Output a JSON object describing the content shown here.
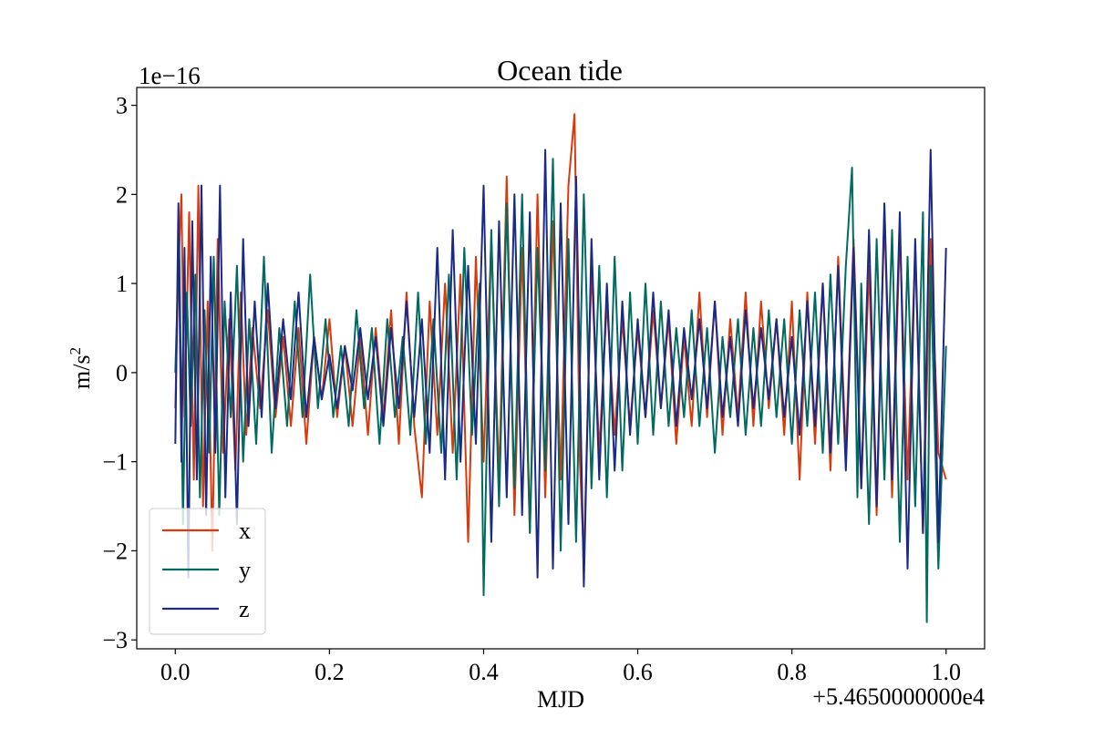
{
  "chart_data": {
    "type": "line",
    "title": "Ocean tide",
    "xlabel": "MJD",
    "ylabel_base": "m/s",
    "ylabel_exp": "2",
    "x_offset_text": "+5.4650000000e4",
    "y_scale_text": "1e−16",
    "xlim": [
      -0.05,
      1.05
    ],
    "ylim": [
      -3.1,
      3.2
    ],
    "x_ticks": [
      0.0,
      0.2,
      0.4,
      0.6,
      0.8,
      1.0
    ],
    "x_tick_labels": [
      "0.0",
      "0.2",
      "0.4",
      "0.6",
      "0.8",
      "1.0"
    ],
    "y_ticks": [
      -3,
      -2,
      -1,
      0,
      1,
      2,
      3
    ],
    "y_tick_labels": [
      "−3",
      "−2",
      "−1",
      "0",
      "1",
      "2",
      "3"
    ],
    "legend_position": "lower-left",
    "grid": false,
    "series": [
      {
        "name": "x",
        "color": "#d93a0c",
        "x": [
          0.0,
          0.004,
          0.008,
          0.012,
          0.018,
          0.024,
          0.03,
          0.036,
          0.042,
          0.048,
          0.055,
          0.062,
          0.07,
          0.078,
          0.085,
          0.092,
          0.1,
          0.11,
          0.12,
          0.13,
          0.14,
          0.15,
          0.16,
          0.17,
          0.18,
          0.19,
          0.2,
          0.21,
          0.22,
          0.23,
          0.24,
          0.25,
          0.26,
          0.27,
          0.28,
          0.29,
          0.3,
          0.31,
          0.32,
          0.33,
          0.34,
          0.35,
          0.36,
          0.37,
          0.38,
          0.39,
          0.4,
          0.41,
          0.42,
          0.43,
          0.44,
          0.45,
          0.46,
          0.47,
          0.48,
          0.49,
          0.5,
          0.51,
          0.518,
          0.525,
          0.53,
          0.54,
          0.55,
          0.56,
          0.57,
          0.58,
          0.59,
          0.6,
          0.61,
          0.62,
          0.63,
          0.64,
          0.65,
          0.66,
          0.67,
          0.68,
          0.69,
          0.7,
          0.71,
          0.72,
          0.73,
          0.74,
          0.75,
          0.76,
          0.77,
          0.78,
          0.79,
          0.8,
          0.81,
          0.82,
          0.83,
          0.84,
          0.85,
          0.86,
          0.87,
          0.88,
          0.89,
          0.9,
          0.91,
          0.92,
          0.93,
          0.94,
          0.95,
          0.96,
          0.97,
          0.98,
          0.99,
          1.0
        ],
        "y": [
          -0.4,
          1.2,
          2.0,
          -0.5,
          1.8,
          -1.2,
          2.1,
          -1.5,
          0.8,
          -2.0,
          1.5,
          -0.9,
          0.6,
          -1.1,
          0.9,
          -0.7,
          0.5,
          -0.4,
          0.7,
          -0.5,
          0.4,
          -0.6,
          0.5,
          -0.8,
          0.4,
          -0.3,
          0.6,
          -0.5,
          0.3,
          -0.6,
          0.4,
          -0.7,
          0.5,
          -0.5,
          0.7,
          -0.8,
          0.9,
          -0.6,
          -1.4,
          0.8,
          -0.7,
          1.0,
          -0.9,
          1.1,
          -1.9,
          1.3,
          -1.0,
          1.5,
          -1.2,
          2.2,
          -1.6,
          1.4,
          -1.8,
          2.0,
          -1.4,
          1.7,
          -1.2,
          2.1,
          2.9,
          -1.0,
          -2.1,
          1.2,
          -0.9,
          0.8,
          -0.7,
          0.6,
          -0.6,
          0.5,
          -0.5,
          0.7,
          -0.4,
          0.6,
          -0.8,
          0.4,
          -0.6,
          0.9,
          -0.5,
          0.8,
          -0.7,
          0.6,
          -0.5,
          0.9,
          -0.6,
          0.8,
          -0.4,
          0.6,
          -0.7,
          0.8,
          -1.2,
          0.9,
          -0.8,
          1.0,
          -1.1,
          1.3,
          -0.9,
          1.5,
          -1.3,
          1.2,
          -1.6,
          1.8,
          -1.4,
          1.6,
          -1.2,
          1.4,
          -1.8,
          1.5,
          -0.9,
          -1.2
        ]
      },
      {
        "name": "y",
        "color": "#006b5e",
        "x": [
          0.0,
          0.005,
          0.01,
          0.015,
          0.02,
          0.026,
          0.032,
          0.038,
          0.044,
          0.05,
          0.057,
          0.064,
          0.072,
          0.08,
          0.088,
          0.096,
          0.105,
          0.115,
          0.125,
          0.135,
          0.145,
          0.155,
          0.165,
          0.175,
          0.185,
          0.195,
          0.205,
          0.215,
          0.225,
          0.235,
          0.245,
          0.255,
          0.265,
          0.275,
          0.285,
          0.295,
          0.305,
          0.315,
          0.325,
          0.335,
          0.345,
          0.355,
          0.365,
          0.375,
          0.385,
          0.395,
          0.4,
          0.41,
          0.42,
          0.43,
          0.44,
          0.45,
          0.46,
          0.47,
          0.48,
          0.49,
          0.5,
          0.51,
          0.52,
          0.53,
          0.54,
          0.55,
          0.56,
          0.57,
          0.58,
          0.59,
          0.6,
          0.61,
          0.62,
          0.63,
          0.64,
          0.65,
          0.66,
          0.67,
          0.68,
          0.69,
          0.7,
          0.71,
          0.72,
          0.73,
          0.74,
          0.75,
          0.76,
          0.77,
          0.78,
          0.79,
          0.8,
          0.81,
          0.82,
          0.83,
          0.84,
          0.85,
          0.86,
          0.87,
          0.878,
          0.885,
          0.89,
          0.9,
          0.91,
          0.92,
          0.93,
          0.94,
          0.95,
          0.96,
          0.97,
          0.975,
          0.98,
          0.99,
          1.0
        ],
        "y": [
          0.0,
          1.5,
          -1.7,
          0.9,
          -0.6,
          1.1,
          -1.4,
          0.7,
          -0.9,
          1.3,
          -1.6,
          0.8,
          -0.5,
          1.2,
          -1.0,
          0.6,
          -0.8,
          1.3,
          -0.9,
          0.5,
          -0.6,
          0.8,
          -0.5,
          1.1,
          -0.4,
          0.6,
          -0.5,
          0.3,
          -0.6,
          0.7,
          -0.4,
          0.5,
          -0.8,
          0.6,
          -0.5,
          0.4,
          -0.7,
          0.9,
          -0.8,
          0.6,
          -0.9,
          1.1,
          -1.2,
          1.4,
          -0.7,
          1.0,
          -2.5,
          1.6,
          -1.5,
          1.9,
          -1.3,
          2.0,
          -1.8,
          1.4,
          -1.1,
          2.4,
          -2.0,
          1.5,
          -1.9,
          2.0,
          -1.3,
          1.2,
          -1.4,
          1.3,
          -1.1,
          0.9,
          -0.8,
          1.0,
          -0.7,
          0.8,
          -0.6,
          0.5,
          -0.5,
          0.7,
          -0.6,
          0.5,
          -0.9,
          0.4,
          -0.5,
          0.6,
          -0.7,
          0.5,
          -0.6,
          0.7,
          -0.5,
          0.6,
          -0.8,
          0.7,
          -0.6,
          0.9,
          -0.9,
          1.1,
          -0.8,
          1.2,
          2.3,
          -1.4,
          1.0,
          -1.7,
          1.5,
          -1.2,
          1.6,
          -1.9,
          1.3,
          -1.5,
          1.8,
          -2.8,
          1.2,
          -2.2,
          0.3
        ]
      },
      {
        "name": "z",
        "color": "#1b2a86",
        "x": [
          0.0,
          0.004,
          0.008,
          0.012,
          0.017,
          0.022,
          0.028,
          0.034,
          0.04,
          0.046,
          0.052,
          0.058,
          0.065,
          0.072,
          0.08,
          0.088,
          0.095,
          0.103,
          0.112,
          0.12,
          0.13,
          0.14,
          0.15,
          0.16,
          0.17,
          0.18,
          0.19,
          0.2,
          0.21,
          0.22,
          0.23,
          0.24,
          0.25,
          0.26,
          0.27,
          0.28,
          0.29,
          0.3,
          0.31,
          0.32,
          0.33,
          0.34,
          0.35,
          0.36,
          0.37,
          0.38,
          0.39,
          0.4,
          0.41,
          0.42,
          0.43,
          0.44,
          0.45,
          0.46,
          0.47,
          0.48,
          0.49,
          0.5,
          0.51,
          0.52,
          0.53,
          0.54,
          0.55,
          0.56,
          0.57,
          0.58,
          0.59,
          0.6,
          0.61,
          0.62,
          0.63,
          0.64,
          0.65,
          0.66,
          0.67,
          0.68,
          0.69,
          0.7,
          0.71,
          0.72,
          0.73,
          0.74,
          0.75,
          0.76,
          0.77,
          0.78,
          0.79,
          0.8,
          0.81,
          0.82,
          0.83,
          0.84,
          0.85,
          0.86,
          0.87,
          0.88,
          0.89,
          0.9,
          0.91,
          0.92,
          0.93,
          0.94,
          0.95,
          0.96,
          0.97,
          0.98,
          0.99,
          1.0
        ],
        "y": [
          -0.8,
          1.9,
          -1.0,
          1.4,
          -2.3,
          1.7,
          -1.2,
          2.1,
          -1.6,
          1.3,
          -0.9,
          2.1,
          -1.4,
          0.9,
          -1.7,
          1.5,
          -0.6,
          0.8,
          -0.5,
          1.0,
          -0.4,
          0.6,
          -0.3,
          0.9,
          -0.5,
          0.4,
          -0.3,
          0.2,
          -0.4,
          0.3,
          -0.2,
          0.5,
          -0.3,
          0.4,
          -0.6,
          0.5,
          -0.4,
          0.8,
          -0.5,
          0.6,
          -0.9,
          1.4,
          -1.2,
          1.6,
          -1.0,
          1.2,
          -0.8,
          2.1,
          -1.9,
          1.7,
          -1.4,
          2.0,
          -1.6,
          1.8,
          -2.3,
          2.5,
          -2.2,
          1.9,
          -1.7,
          2.2,
          -2.4,
          1.5,
          -1.2,
          1.0,
          -1.1,
          0.8,
          -0.7,
          0.6,
          -0.5,
          0.9,
          -0.4,
          0.7,
          -0.6,
          0.5,
          -0.3,
          0.6,
          -0.4,
          0.8,
          -0.5,
          0.4,
          -0.6,
          0.7,
          -0.4,
          0.5,
          -0.3,
          0.6,
          -0.5,
          0.4,
          -0.7,
          0.8,
          -0.6,
          1.0,
          -0.9,
          1.2,
          -1.1,
          1.4,
          -1.3,
          1.6,
          -1.5,
          1.9,
          -1.2,
          1.8,
          -2.2,
          1.5,
          -1.8,
          2.5,
          -1.9,
          1.4
        ]
      }
    ]
  }
}
